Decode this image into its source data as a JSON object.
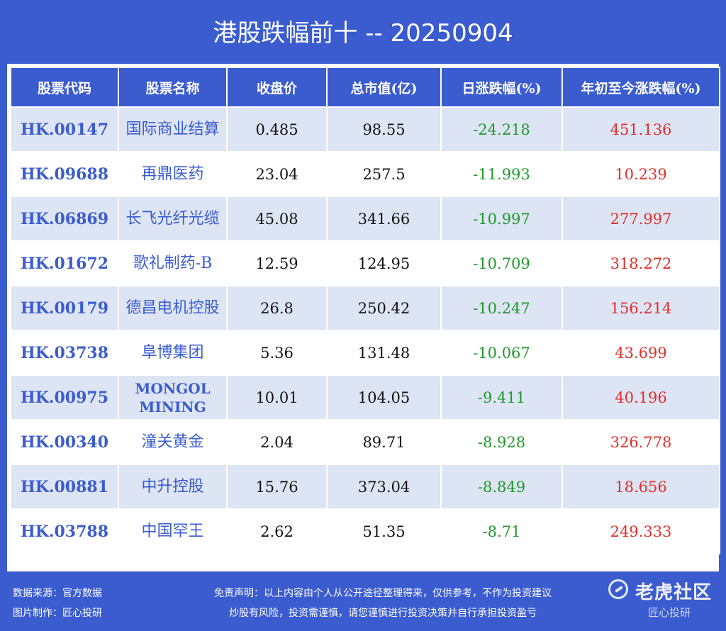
{
  "title": "港股跌幅前十 -- 20250904",
  "table": {
    "headers": [
      "股票代码",
      "股票名称",
      "收盘价",
      "总市值(亿)",
      "日涨跌幅(%)",
      "年初至今涨跌幅(%)"
    ],
    "rows": [
      {
        "code": "HK.00147",
        "name": "国际商业结算",
        "close": "0.485",
        "mcap": "98.55",
        "day": "-24.218",
        "ytd": "451.136"
      },
      {
        "code": "HK.09688",
        "name": "再鼎医药",
        "close": "23.04",
        "mcap": "257.5",
        "day": "-11.993",
        "ytd": "10.239"
      },
      {
        "code": "HK.06869",
        "name": "长飞光纤光缆",
        "close": "45.08",
        "mcap": "341.66",
        "day": "-10.997",
        "ytd": "277.997"
      },
      {
        "code": "HK.01672",
        "name": "歌礼制药-B",
        "close": "12.59",
        "mcap": "124.95",
        "day": "-10.709",
        "ytd": "318.272"
      },
      {
        "code": "HK.00179",
        "name": "德昌电机控股",
        "close": "26.8",
        "mcap": "250.42",
        "day": "-10.247",
        "ytd": "156.214"
      },
      {
        "code": "HK.03738",
        "name": "阜博集团",
        "close": "5.36",
        "mcap": "131.48",
        "day": "-10.067",
        "ytd": "43.699"
      },
      {
        "code": "HK.00975",
        "name": "MONGOL MINING",
        "close": "10.01",
        "mcap": "104.05",
        "day": "-9.411",
        "ytd": "40.196"
      },
      {
        "code": "HK.00340",
        "name": "潼关黄金",
        "close": "2.04",
        "mcap": "89.71",
        "day": "-8.928",
        "ytd": "326.778"
      },
      {
        "code": "HK.00881",
        "name": "中升控股",
        "close": "15.76",
        "mcap": "373.04",
        "day": "-8.849",
        "ytd": "18.656"
      },
      {
        "code": "HK.03788",
        "name": "中国罕王",
        "close": "2.62",
        "mcap": "51.35",
        "day": "-8.71",
        "ytd": "249.333"
      }
    ]
  },
  "footer": {
    "source": "数据来源：官方数据",
    "maker": "图片制作：匠心投研",
    "disclaimer1": "免责声明：以上内容由个人从公开途径整理得来，仅供参考，不作为投资建议",
    "disclaimer2": "炒股有风险，投资需谨慎，请您谨慎进行投资决策并自行承担投资盈亏"
  },
  "watermark": {
    "icon": "tiger-community-logo-icon",
    "brand": "老虎社区",
    "sub": "匠心投研"
  },
  "colors": {
    "background": "#3b5ccf",
    "row_alt": "#dde4f4",
    "code_text": "#3b5ccf",
    "negative": "#1f9a2a",
    "positive": "#e0302a"
  }
}
